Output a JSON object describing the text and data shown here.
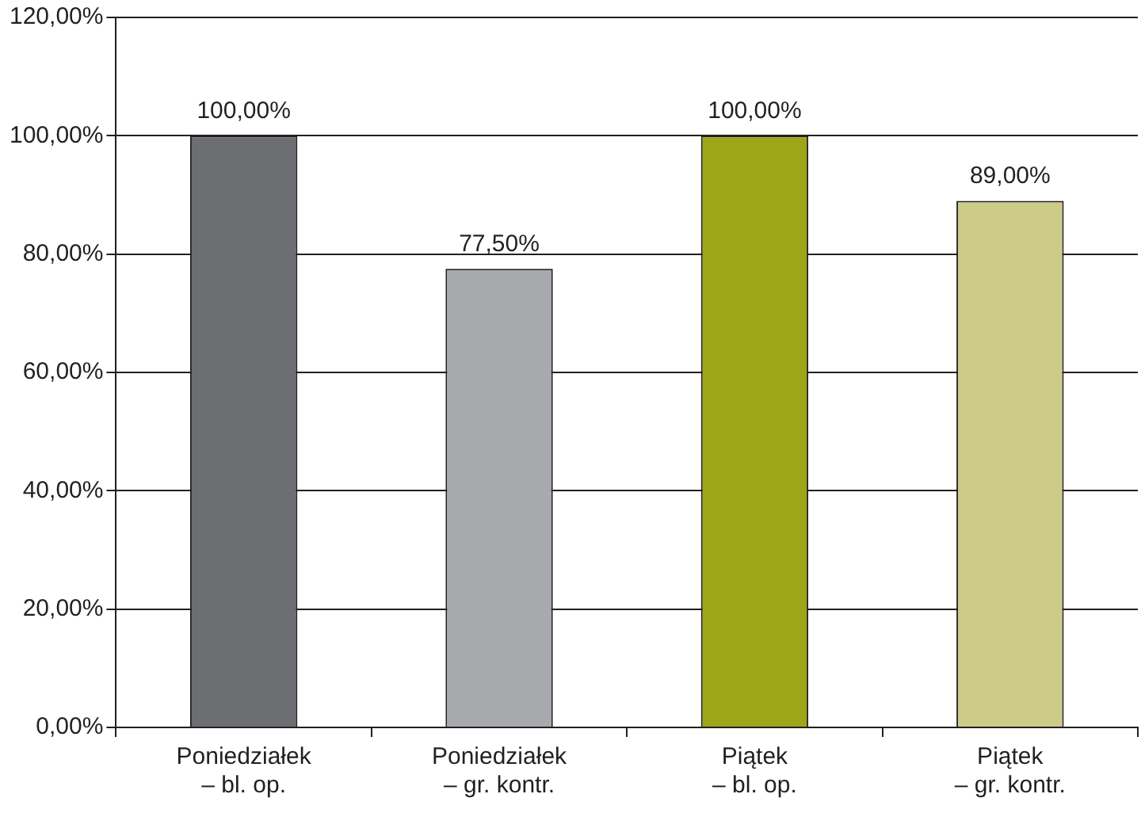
{
  "chart_data": {
    "type": "bar",
    "categories": [
      "Poniedziałek\n– bl. op.",
      "Poniedziałek\n– gr. kontr.",
      "Piątek\n– bl. op.",
      "Piątek\n– gr. kontr."
    ],
    "values": [
      100,
      77.5,
      100,
      89
    ],
    "colors": [
      "#6d6e71",
      "#a7a9ac",
      "#9ca617",
      "#cccc88"
    ],
    "value_labels": [
      "100,00%",
      "77,50%",
      "100,00%",
      "89,00%"
    ],
    "ylim": [
      0,
      120
    ],
    "yticks": [
      {
        "value": 0,
        "label": "0,00%"
      },
      {
        "value": 20,
        "label": "20,00%"
      },
      {
        "value": 40,
        "label": "40,00%"
      },
      {
        "value": 60,
        "label": "60,00%"
      },
      {
        "value": 80,
        "label": "80,00%"
      },
      {
        "value": 100,
        "label": "100,00%"
      },
      {
        "value": 120,
        "label": "120,00%"
      }
    ],
    "grid": "y",
    "legend": false
  }
}
